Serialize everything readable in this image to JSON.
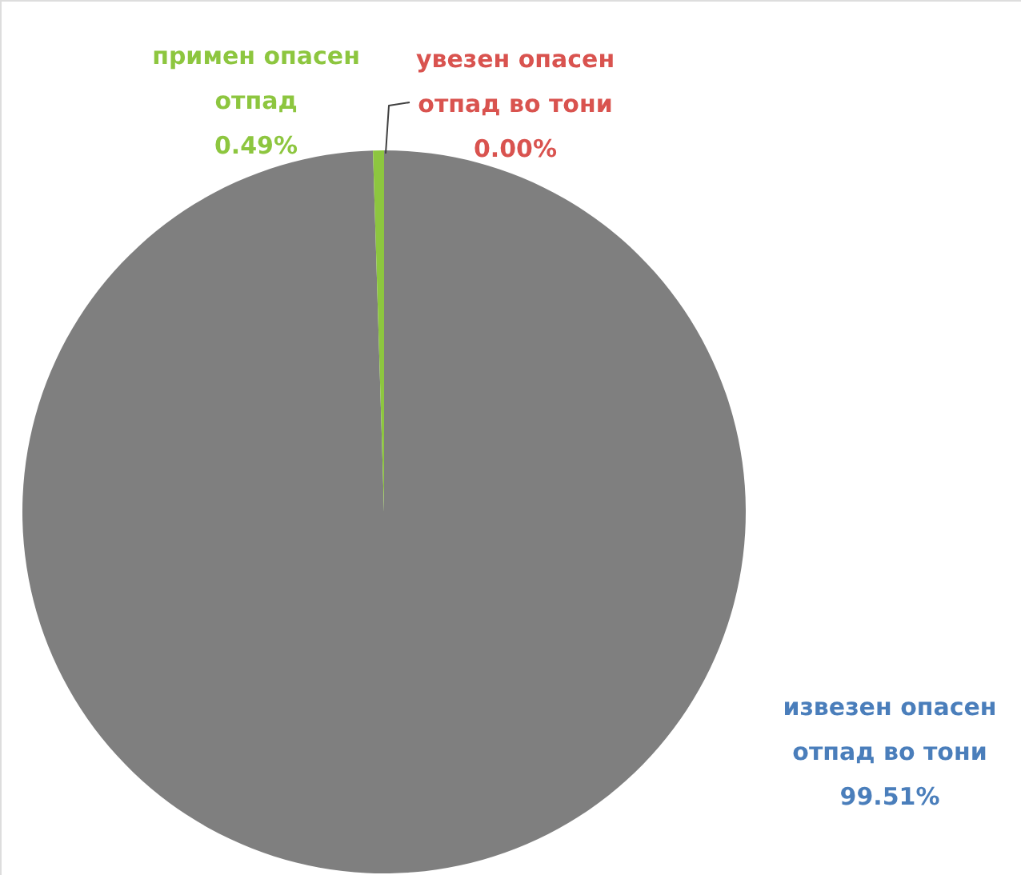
{
  "chart_data": {
    "type": "pie",
    "categories": [
      "извезен опасен отпад во тони",
      "увезен опасен отпад во тони",
      "примен опасен отпад"
    ],
    "values": [
      99.51,
      0.0,
      0.49
    ],
    "value_labels": [
      "99.51%",
      "0.00%",
      "0.49%"
    ],
    "colors": [
      "#7f7f7f",
      "#c0504d",
      "#8dc63f"
    ]
  }
}
